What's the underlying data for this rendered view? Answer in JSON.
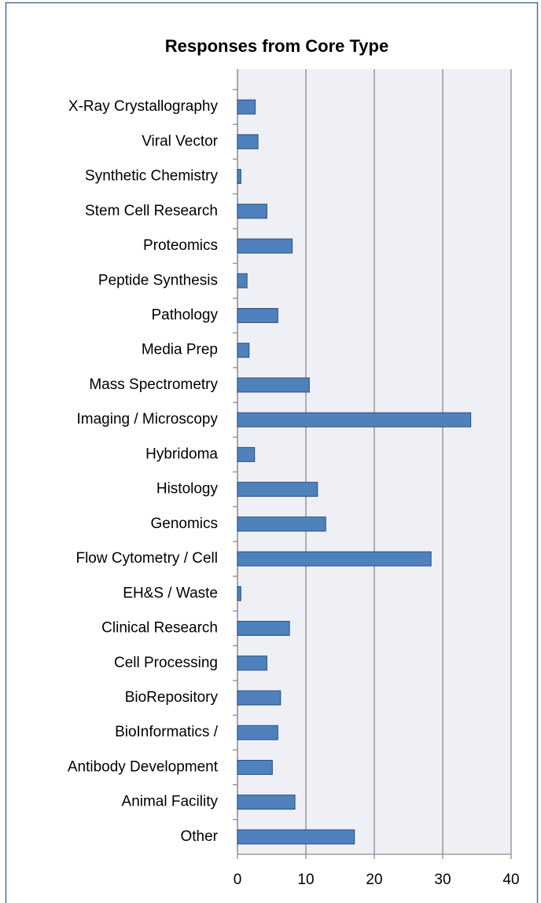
{
  "chart_data": {
    "type": "bar",
    "orientation": "horizontal",
    "title": "Responses from Core Type",
    "categories": [
      "X-Ray Crystallography",
      "Viral Vector",
      "Synthetic Chemistry",
      "Stem Cell Research",
      "Proteomics",
      "Peptide Synthesis",
      "Pathology",
      "Media Prep",
      "Mass Spectrometry",
      "Imaging / Microscopy",
      "Hybridoma",
      "Histology",
      "Genomics",
      "Flow Cytometry / Cell",
      "EH&S / Waste",
      "Clinical Research",
      "Cell Processing",
      "BioRepository",
      "BioInformatics /",
      "Antibody Development",
      "Animal Facility",
      "Other"
    ],
    "values": [
      2.6,
      3.0,
      0.5,
      4.3,
      8.0,
      1.4,
      5.9,
      1.7,
      10.5,
      34.1,
      2.5,
      11.7,
      12.9,
      28.3,
      0.5,
      7.6,
      4.3,
      6.3,
      5.9,
      5.1,
      8.4,
      17.1
    ],
    "color": "#4f81bd",
    "xlim": [
      0,
      40
    ],
    "xticks": [
      0,
      10,
      20,
      30,
      40
    ],
    "grid": true
  }
}
